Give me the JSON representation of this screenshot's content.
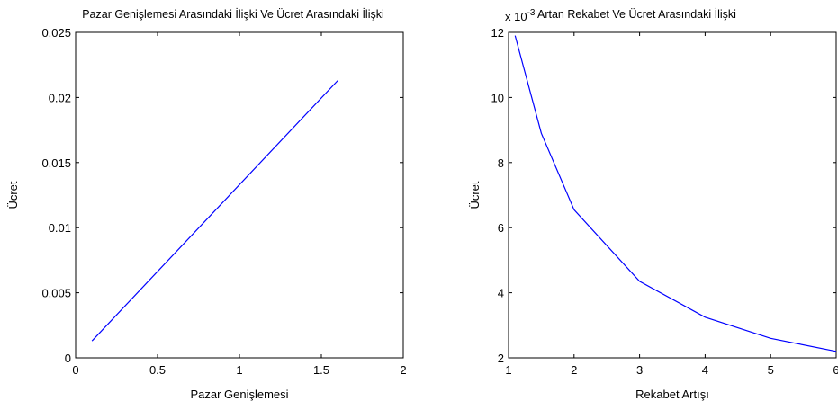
{
  "chart_data": [
    {
      "type": "line",
      "title": "Pazar Genişlemesi Arasındaki İlişki Ve Ücret Arasındaki İlişki",
      "xlabel": "Pazar Genişlemesi",
      "ylabel": "Ücret",
      "xlim": [
        0,
        2
      ],
      "ylim": [
        0,
        0.025
      ],
      "x_ticks": [
        0,
        0.5,
        1,
        1.5,
        2
      ],
      "x_tick_labels": [
        "0",
        "0.5",
        "1",
        "1.5",
        "2"
      ],
      "y_ticks": [
        0,
        0.005,
        0.01,
        0.015,
        0.02,
        0.025
      ],
      "y_tick_labels": [
        "0",
        "0.005",
        "0.01",
        "0.015",
        "0.02",
        "0.025"
      ],
      "grid": false,
      "series": [
        {
          "color": "#0000ff",
          "x": [
            0.1,
            1.6
          ],
          "y": [
            0.0013,
            0.0213
          ]
        }
      ]
    },
    {
      "type": "line",
      "title": "Artan Rekabet Ve Ücret Arasındaki İlişki",
      "axis_multiplier": "x 10",
      "axis_multiplier_exponent": "-3",
      "xlabel": "Rekabet Artışı",
      "ylabel": "Ücret",
      "xlim": [
        1,
        6
      ],
      "ylim": [
        2,
        12
      ],
      "x_ticks": [
        1,
        2,
        3,
        4,
        5,
        6
      ],
      "x_tick_labels": [
        "1",
        "2",
        "3",
        "4",
        "5",
        "6"
      ],
      "y_ticks": [
        2,
        4,
        6,
        8,
        10,
        12
      ],
      "y_tick_labels": [
        "2",
        "4",
        "6",
        "8",
        "10",
        "12"
      ],
      "grid": false,
      "series": [
        {
          "color": "#0000ff",
          "x": [
            1.1,
            1.5,
            2,
            3,
            4,
            5,
            6
          ],
          "y": [
            11.9,
            8.9,
            6.55,
            4.35,
            3.25,
            2.6,
            2.2
          ]
        }
      ]
    }
  ]
}
